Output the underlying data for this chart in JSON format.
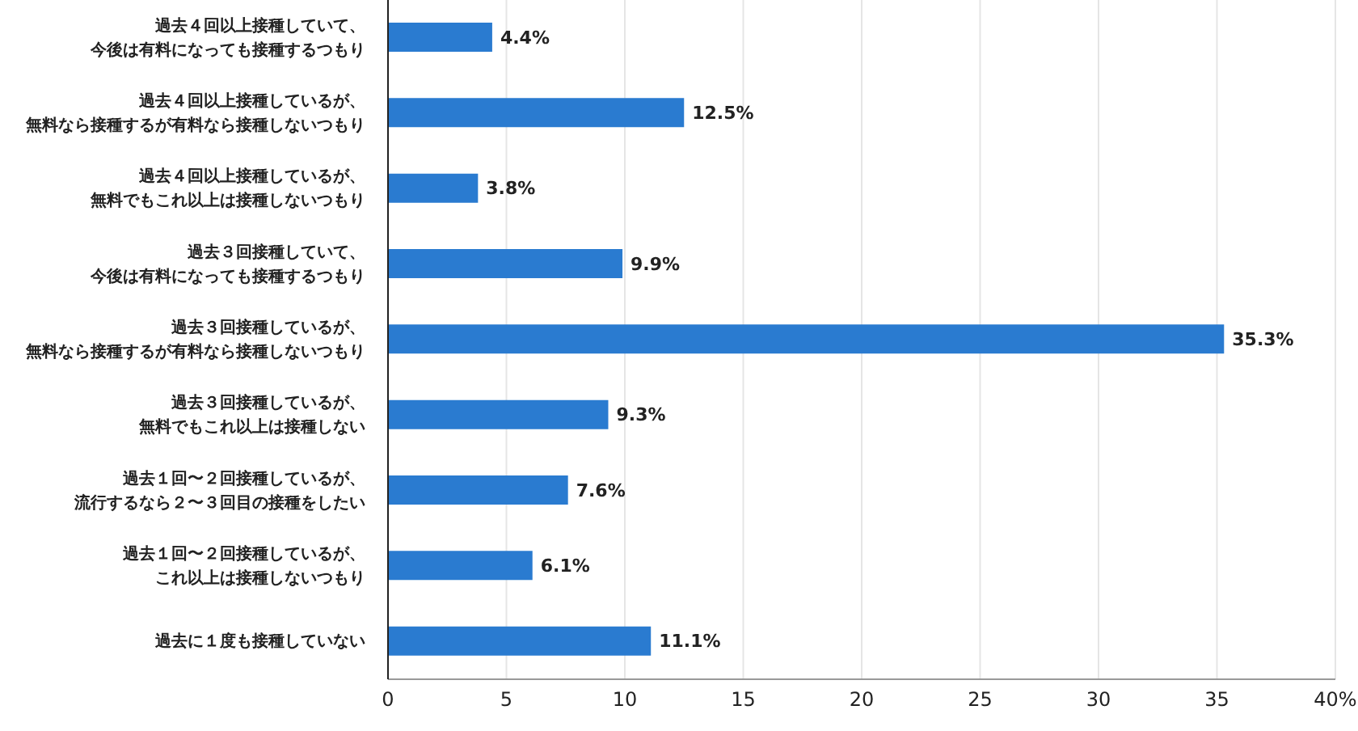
{
  "chart_data": {
    "type": "bar",
    "orientation": "horizontal",
    "categories": [
      "過去４回以上接種していて、今後は有料になっても接種するつもり",
      "過去４回以上接種しているが、無料なら接種するが有料なら接種しないつもり",
      "過去４回以上接種しているが、無料でもこれ以上は接種しないつもり",
      "過去３回接種していて、今後は有料になっても接種するつもり",
      "過去３回接種しているが、無料なら接種するが有料なら接種しないつもり",
      "過去３回接種しているが、無料でもこれ以上は接種しない",
      "過去１回〜２回接種しているが、流行するなら２〜３回目の接種をしたい",
      "過去１回〜２回接種しているが、これ以上は接種しないつもり",
      "過去に１度も接種していない"
    ],
    "values": [
      4.4,
      12.5,
      3.8,
      9.9,
      35.3,
      9.3,
      7.6,
      6.1,
      11.1
    ],
    "value_labels": [
      "4.4%",
      "12.5%",
      "3.8%",
      "9.9%",
      "35.3%",
      "9.3%",
      "7.6%",
      "6.1%",
      "11.1%"
    ],
    "color": "#2a7bd0",
    "xlim": [
      0,
      40
    ],
    "xticks": [
      0,
      5,
      10,
      15,
      20,
      25,
      30,
      35,
      {
        "value": 40,
        "label": "40%"
      }
    ],
    "grid": "x"
  }
}
